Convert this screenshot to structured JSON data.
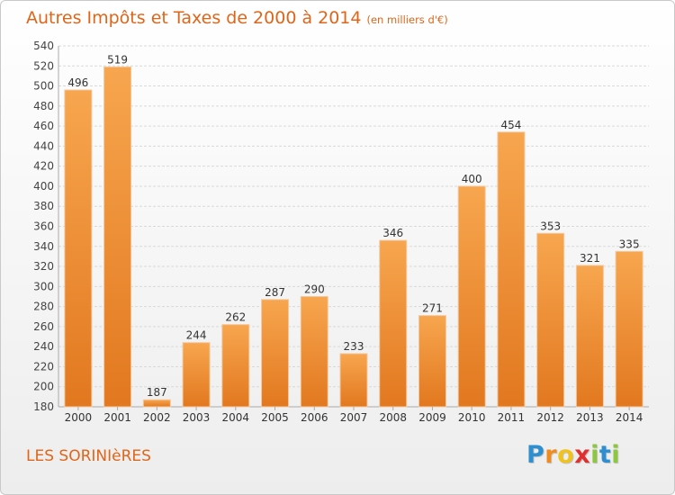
{
  "header": {
    "title": "Autres Impôts et Taxes de 2000 à 2014",
    "subtitle": "(en milliers d'€)"
  },
  "footer": {
    "commune": "LES SORINIèRES",
    "logo_letters": [
      "P",
      "r",
      "o",
      "x",
      "i",
      "t",
      "i"
    ],
    "logo_colors": [
      "#2d8fcf",
      "#f08c1e",
      "#f0c21e",
      "#e0302e",
      "#8dc63f",
      "#2d8fcf",
      "#8dc63f"
    ]
  },
  "colors": {
    "accent": "#e06519",
    "bar_light": "#f7a64f",
    "bar_dark": "#e2781f",
    "grid": "#d9d9d9"
  },
  "chart_data": {
    "type": "bar",
    "title": "Autres Impôts et Taxes de 2000 à 2014",
    "subtitle": "(en milliers d'€)",
    "xlabel": "",
    "ylabel": "",
    "categories": [
      "2000",
      "2001",
      "2002",
      "2003",
      "2004",
      "2005",
      "2006",
      "2007",
      "2008",
      "2009",
      "2010",
      "2011",
      "2012",
      "2013",
      "2014"
    ],
    "values": [
      496,
      519,
      187,
      244,
      262,
      287,
      290,
      233,
      346,
      271,
      400,
      454,
      353,
      321,
      335
    ],
    "ylim": [
      180,
      540
    ],
    "ytick_step": 20,
    "grid": true,
    "data_labels": true
  }
}
